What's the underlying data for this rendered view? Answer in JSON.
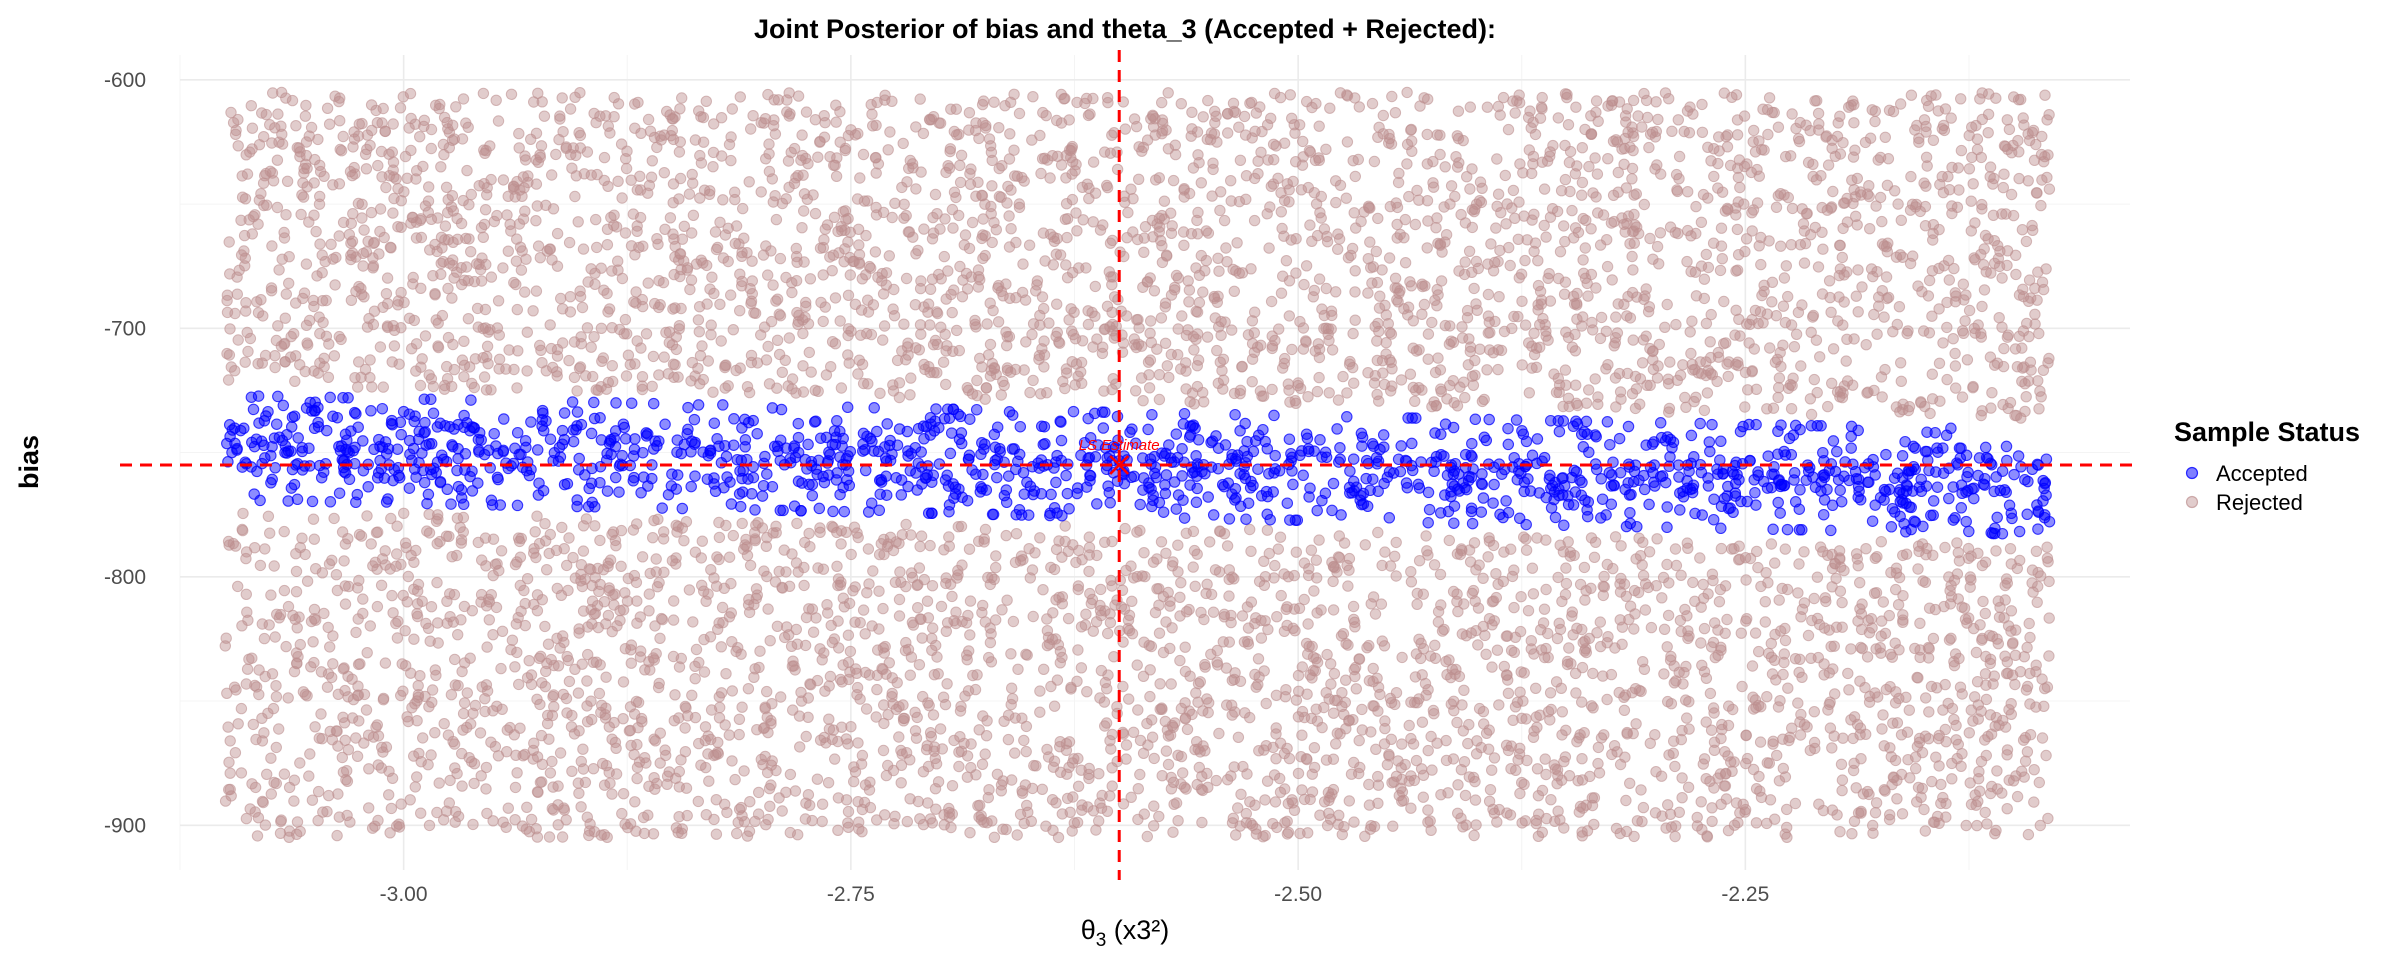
{
  "chart_data": {
    "type": "scatter",
    "title": "Joint Posterior of bias and theta_3 (Accepted + Rejected):",
    "xlabel_symbol": "θ",
    "xlabel_sub": "3",
    "xlabel_rest": " (x3²)",
    "ylabel": "bias",
    "xlim": [
      -3.125,
      -2.035
    ],
    "ylim": [
      -918,
      -590
    ],
    "x_sample_range": [
      -3.1,
      -2.08
    ],
    "y_sample_range": [
      -905,
      -605
    ],
    "x_ticks": [
      {
        "value": -3.0,
        "label": "-3.00"
      },
      {
        "value": -2.75,
        "label": "-2.75"
      },
      {
        "value": -2.5,
        "label": "-2.50"
      },
      {
        "value": -2.25,
        "label": "-2.25"
      }
    ],
    "y_ticks": [
      {
        "value": -900,
        "label": "-900"
      },
      {
        "value": -800,
        "label": "-800"
      },
      {
        "value": -700,
        "label": "-700"
      },
      {
        "value": -600,
        "label": "-600"
      }
    ],
    "reference_lines": {
      "x": -2.6,
      "y": -755,
      "color": "#ff0000"
    },
    "ls_estimate": {
      "x": -2.6,
      "y": -755,
      "label": "LS Estimate"
    },
    "series": [
      {
        "name": "Accepted",
        "color": "#0000ff",
        "approx_count": 1400,
        "band_center_at_x_min": -748,
        "band_center_at_x_max": -762,
        "band_halfwidth": 21
      },
      {
        "name": "Rejected",
        "color": "#bc8f8f",
        "approx_count": 6000
      }
    ],
    "legend": {
      "title": "Sample Status",
      "position": "right"
    },
    "grid": true
  }
}
